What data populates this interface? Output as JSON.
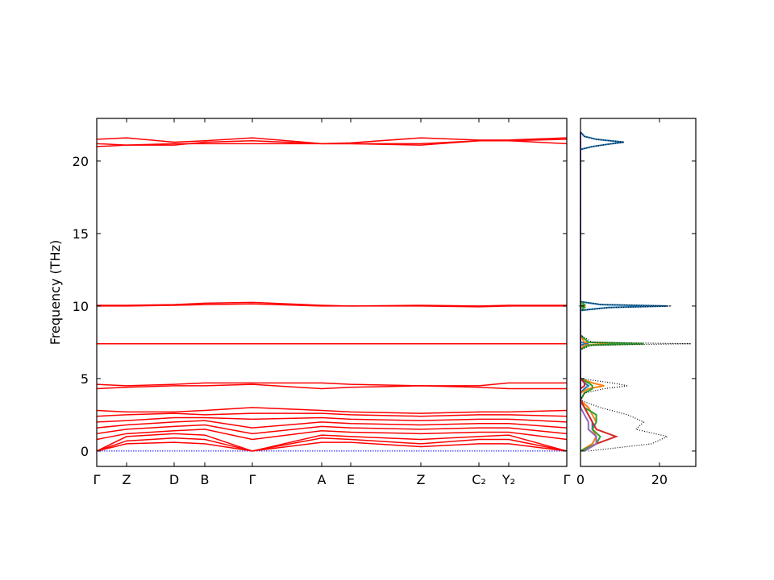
{
  "chart_data": [
    {
      "type": "line",
      "ylabel": "Frequency (THz)",
      "x": [
        0,
        0.37,
        0.96,
        1.34,
        1.93,
        2.79,
        3.15,
        4.02,
        4.74,
        5.11,
        5.83
      ],
      "xlim": [
        0,
        5.83
      ],
      "xticks": [
        {
          "value": 0,
          "label": "Γ"
        },
        {
          "value": 0.37,
          "label": "Z"
        },
        {
          "value": 0.96,
          "label": "D"
        },
        {
          "value": 1.34,
          "label": "B"
        },
        {
          "value": 1.93,
          "label": "Γ"
        },
        {
          "value": 2.79,
          "label": "A"
        },
        {
          "value": 3.15,
          "label": "E"
        },
        {
          "value": 4.02,
          "label": "Z"
        },
        {
          "value": 4.74,
          "label": "C₂"
        },
        {
          "value": 5.11,
          "label": "Y₂"
        },
        {
          "value": 5.83,
          "label": "Γ"
        }
      ],
      "ylim": [
        -1.06,
        22.94
      ],
      "yticks": [
        0,
        5,
        10,
        15,
        20
      ],
      "color": "#ff0000",
      "hline": {
        "value": 0,
        "color": "#0000ff"
      },
      "series": [
        {
          "values": [
            0,
            0.5,
            0.6,
            0.5,
            0,
            0.6,
            0.6,
            0.3,
            0.5,
            0.5,
            0
          ]
        },
        {
          "values": [
            0,
            0.7,
            0.9,
            0.8,
            0,
            0.9,
            0.8,
            0.5,
            0.8,
            0.8,
            0
          ]
        },
        {
          "values": [
            0,
            1.0,
            1.2,
            1.1,
            0,
            1.1,
            1.0,
            0.8,
            1.0,
            1.1,
            0
          ]
        },
        {
          "values": [
            0.8,
            1.2,
            1.4,
            1.5,
            0.8,
            1.4,
            1.3,
            1.2,
            1.3,
            1.3,
            0.8
          ]
        },
        {
          "values": [
            1.2,
            1.5,
            1.7,
            1.8,
            1.2,
            1.7,
            1.6,
            1.5,
            1.6,
            1.6,
            1.2
          ]
        },
        {
          "values": [
            1.6,
            1.8,
            2.0,
            2.1,
            1.6,
            2.0,
            1.9,
            1.8,
            1.9,
            1.9,
            1.6
          ]
        },
        {
          "values": [
            2.0,
            2.1,
            2.3,
            2.3,
            2.2,
            2.3,
            2.2,
            2.1,
            2.2,
            2.2,
            2.0
          ]
        },
        {
          "values": [
            2.4,
            2.5,
            2.6,
            2.5,
            2.6,
            2.6,
            2.5,
            2.4,
            2.5,
            2.5,
            2.4
          ]
        },
        {
          "values": [
            2.8,
            2.7,
            2.7,
            2.8,
            3.0,
            2.8,
            2.7,
            2.6,
            2.7,
            2.7,
            2.8
          ]
        },
        {
          "values": [
            4.3,
            4.4,
            4.5,
            4.5,
            4.6,
            4.3,
            4.4,
            4.5,
            4.4,
            4.3,
            4.3
          ]
        },
        {
          "values": [
            4.6,
            4.5,
            4.6,
            4.7,
            4.7,
            4.7,
            4.6,
            4.5,
            4.5,
            4.7,
            4.7
          ]
        },
        {
          "values": [
            7.4,
            7.4,
            7.4,
            7.4,
            7.4,
            7.4,
            7.4,
            7.4,
            7.4,
            7.4,
            7.4
          ]
        },
        {
          "values": [
            10.0,
            10.0,
            10.05,
            10.1,
            10.15,
            10.0,
            10.0,
            10.0,
            9.95,
            10.0,
            10.0
          ]
        },
        {
          "values": [
            10.05,
            10.05,
            10.1,
            10.2,
            10.25,
            10.05,
            10.0,
            10.05,
            10.0,
            10.05,
            10.05
          ]
        },
        {
          "values": [
            21.0,
            21.1,
            21.2,
            21.2,
            21.2,
            21.2,
            21.2,
            21.2,
            21.4,
            21.4,
            21.5
          ]
        },
        {
          "values": [
            21.5,
            21.6,
            21.3,
            21.4,
            21.6,
            21.2,
            21.25,
            21.6,
            21.45,
            21.45,
            21.6
          ]
        },
        {
          "values": [
            21.2,
            21.1,
            21.1,
            21.3,
            21.4,
            21.2,
            21.2,
            21.1,
            21.4,
            21.4,
            21.2
          ]
        }
      ]
    },
    {
      "type": "dos",
      "y": [
        0,
        0.5,
        1,
        1.5,
        2,
        2.5,
        3,
        3.5,
        4,
        4.3,
        4.5,
        4.7,
        5,
        7,
        7.3,
        7.4,
        7.5,
        8,
        9.7,
        9.9,
        10.0,
        10.1,
        10.3,
        20.8,
        21,
        21.2,
        21.3,
        21.5,
        21.7,
        22
      ],
      "xlim": [
        0,
        29.2
      ],
      "xticks": [
        0,
        20
      ],
      "ylim": [
        -1.06,
        22.94
      ],
      "yticks": [
        0,
        5,
        10,
        15,
        20
      ],
      "ytick_labels": false,
      "series": [
        {
          "color": "#1f77b4",
          "values": [
            0,
            3,
            4,
            3,
            3,
            2,
            1,
            0,
            0,
            1,
            2,
            1,
            0,
            0,
            0,
            2,
            0,
            0,
            0,
            7,
            22,
            5,
            0,
            0,
            3,
            8,
            11,
            4,
            1,
            0
          ]
        },
        {
          "color": "#ff7f0e",
          "values": [
            0,
            3,
            4,
            3,
            4,
            3,
            2,
            0,
            0,
            2,
            6,
            3,
            0,
            0,
            1,
            10,
            1,
            0,
            0,
            0,
            1,
            0,
            0,
            0,
            0,
            0,
            0,
            0,
            0,
            0
          ]
        },
        {
          "color": "#2ca02c",
          "values": [
            0,
            4,
            5,
            3,
            4,
            4,
            1,
            0,
            1,
            3,
            3,
            2,
            0,
            0,
            2,
            16,
            2,
            0,
            0,
            1,
            0,
            1,
            0,
            0,
            0,
            0,
            0,
            0,
            0,
            0
          ]
        },
        {
          "color": "#d62728",
          "values": [
            1,
            4,
            9,
            4,
            3,
            2,
            1,
            0,
            0,
            0,
            1,
            1,
            0,
            0,
            0,
            0,
            0,
            0,
            0,
            0,
            0,
            0,
            0,
            0,
            0,
            0,
            0,
            0,
            0,
            0
          ]
        },
        {
          "color": "#9467bd",
          "values": [
            1,
            4,
            4,
            2,
            2,
            1,
            0,
            0,
            0,
            0,
            0,
            0,
            0,
            0,
            0,
            0,
            0,
            0,
            0,
            0,
            0,
            0,
            0,
            0,
            0,
            0,
            0,
            0,
            0,
            0
          ]
        },
        {
          "color": "#000000",
          "dotted": true,
          "values": [
            2,
            18,
            22,
            14,
            16,
            12,
            5,
            0,
            1,
            6,
            12,
            8,
            0,
            0,
            3,
            28,
            3,
            0,
            0,
            8,
            23,
            6,
            0,
            0,
            3,
            8,
            11,
            4,
            1,
            0
          ]
        }
      ]
    }
  ]
}
